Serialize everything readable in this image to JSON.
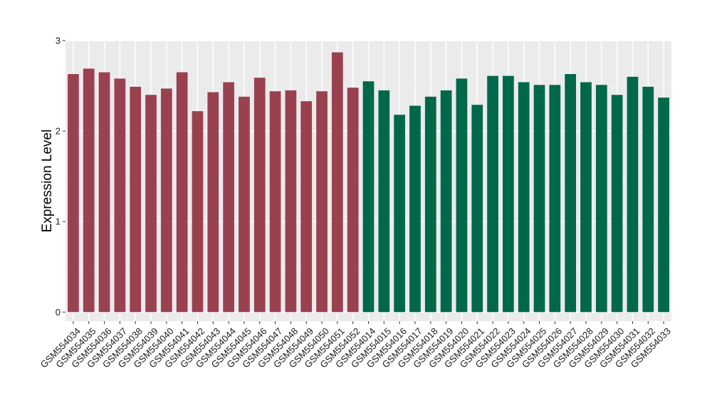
{
  "chart_data": {
    "type": "bar",
    "title": "",
    "xlabel": "",
    "ylabel": "Expression Level",
    "ylim": [
      -0.1,
      3.0
    ],
    "yticks": [
      0,
      1,
      2,
      3
    ],
    "grid": true,
    "legend": "none",
    "categories": [
      "GSM554034",
      "GSM554035",
      "GSM554036",
      "GSM554037",
      "GSM554038",
      "GSM554039",
      "GSM554040",
      "GSM554041",
      "GSM554042",
      "GSM554043",
      "GSM554044",
      "GSM554045",
      "GSM554046",
      "GSM554047",
      "GSM554048",
      "GSM554049",
      "GSM554050",
      "GSM554051",
      "GSM554052",
      "GSM554014",
      "GSM554015",
      "GSM554016",
      "GSM554017",
      "GSM554018",
      "GSM554019",
      "GSM554020",
      "GSM554021",
      "GSM554022",
      "GSM554023",
      "GSM554024",
      "GSM554025",
      "GSM554026",
      "GSM554027",
      "GSM554028",
      "GSM554029",
      "GSM554030",
      "GSM554031",
      "GSM554032",
      "GSM554033"
    ],
    "values": [
      2.63,
      2.69,
      2.65,
      2.58,
      2.49,
      2.4,
      2.47,
      2.65,
      2.22,
      2.43,
      2.54,
      2.38,
      2.59,
      2.44,
      2.45,
      2.33,
      2.44,
      2.87,
      2.48,
      2.55,
      2.45,
      2.18,
      2.28,
      2.38,
      2.45,
      2.58,
      2.29,
      2.61,
      2.61,
      2.54,
      2.51,
      2.51,
      2.63,
      2.54,
      2.51,
      2.4,
      2.6,
      2.49,
      2.37
    ],
    "group_sizes": [
      19,
      20
    ],
    "colors": {
      "group_1": "#9a4150",
      "group_2": "#00684a",
      "panel_background": "#ebebeb",
      "grid_major": "#ffffff",
      "grid_minor": "#f5f5f5"
    }
  }
}
